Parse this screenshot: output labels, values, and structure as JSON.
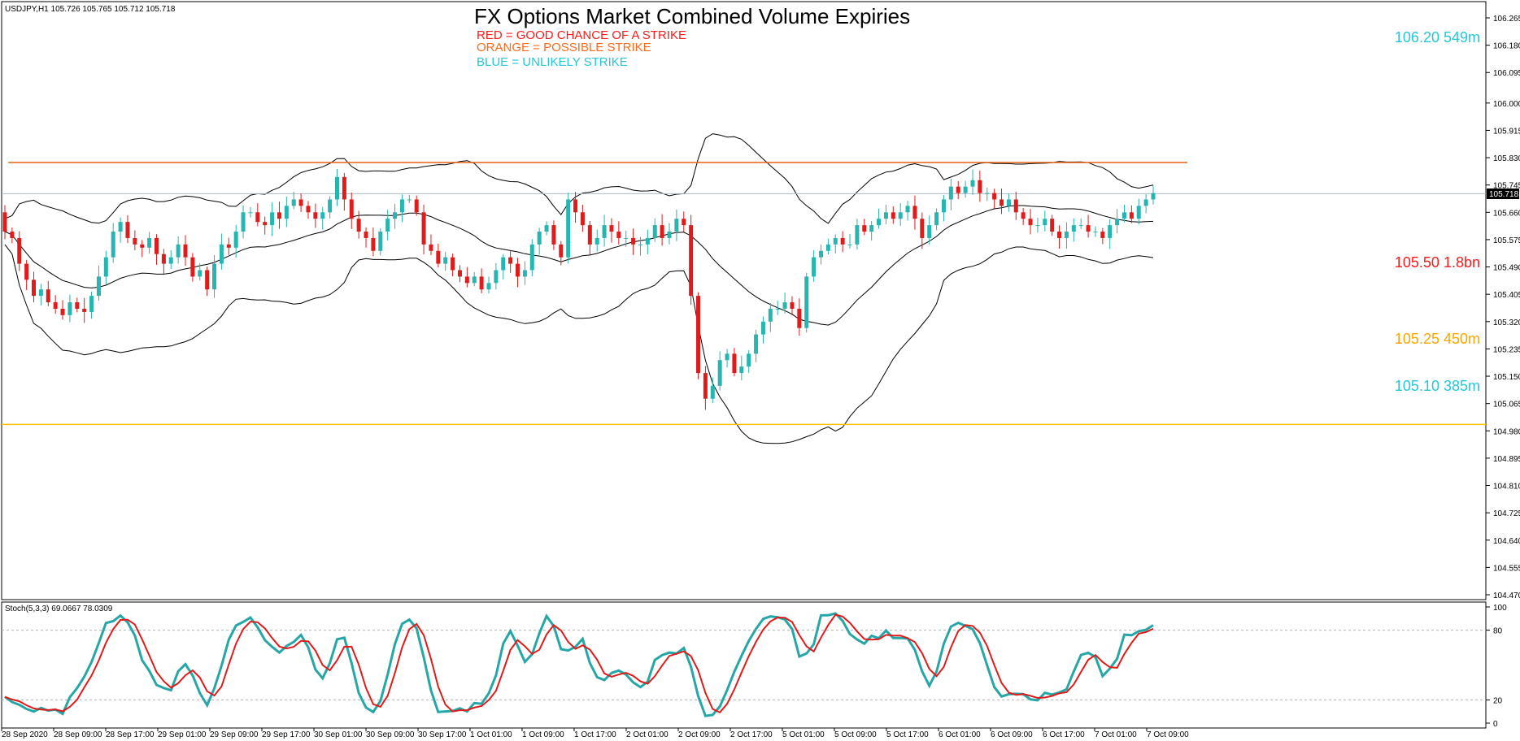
{
  "chart_data": {
    "type": "candlestick",
    "symbol_header": "USDJPY,H1  105.726 105.765 105.712 105.718",
    "title": "FX Options Market Combined Volume Expiries",
    "legend": [
      {
        "text": "RED = GOOD CHANCE OF A STRIKE",
        "color": "#ff1a1a"
      },
      {
        "text": "ORANGE = POSSIBLE STRIKE",
        "color": "#ff6a1a"
      },
      {
        "text": "BLUE = UNLIKELY STRIKE",
        "color": "#26c6da"
      }
    ],
    "price_axis": {
      "ticks": [
        "106.265",
        "106.180",
        "106.095",
        "106.000",
        "105.915",
        "105.830",
        "105.745",
        "105.660",
        "105.575",
        "105.490",
        "105.405",
        "105.320",
        "105.235",
        "105.150",
        "105.065",
        "104.980",
        "104.895",
        "104.810",
        "104.725",
        "104.640",
        "104.555",
        "104.470"
      ],
      "ylim": [
        104.47,
        106.265
      ],
      "current_price": "105.718"
    },
    "time_axis": [
      "28 Sep 2020",
      "28 Sep 09:00",
      "28 Sep 17:00",
      "29 Sep 01:00",
      "29 Sep 09:00",
      "29 Sep 17:00",
      "30 Sep 01:00",
      "30 Sep 09:00",
      "30 Sep 17:00",
      "1 Oct 01:00",
      "1 Oct 09:00",
      "1 Oct 17:00",
      "2 Oct 01:00",
      "2 Oct 09:00",
      "2 Oct 17:00",
      "5 Oct 01:00",
      "5 Oct 09:00",
      "5 Oct 17:00",
      "6 Oct 01:00",
      "6 Oct 09:00",
      "6 Oct 17:00",
      "7 Oct 01:00",
      "7 Oct 09:00"
    ],
    "strikes": [
      {
        "label": "106.20 549m",
        "price": 106.2,
        "color": "#26c6da"
      },
      {
        "label": "105.50 1.8bn",
        "price": 105.5,
        "color": "#ff1a1a"
      },
      {
        "label": "105.25 450m",
        "price": 105.25,
        "color": "#ffa500"
      },
      {
        "label": "105.10 385m",
        "price": 105.1,
        "color": "#26c6da"
      }
    ],
    "horizontal_lines": [
      {
        "price": 105.815,
        "color": "#e0661a"
      },
      {
        "price": 105.718,
        "color": "#a9b8c9"
      },
      {
        "price": 105.0,
        "color": "#ffbf00"
      }
    ],
    "stochastic": {
      "label": "Stoch(5,3,3) 69.0667 78.0309",
      "ticks": [
        "100",
        "80",
        "20",
        "0"
      ],
      "levels": [
        80,
        20
      ]
    }
  }
}
